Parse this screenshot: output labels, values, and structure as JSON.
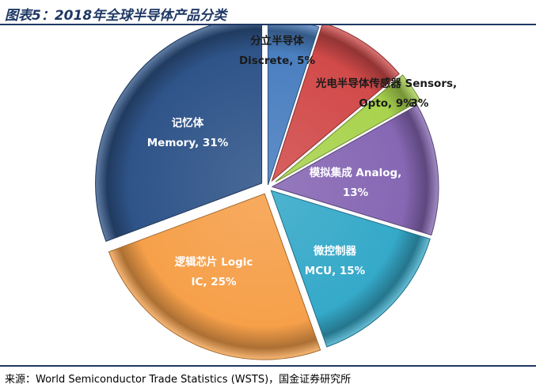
{
  "header": {
    "title": "图表5：2018年全球半导体产品分类"
  },
  "footer": {
    "source": "来源：World Semiconductor Trade Statistics (WSTS)，国金证券研究所"
  },
  "chart_data": {
    "type": "pie",
    "title": "图表5：2018年全球半导体产品分类",
    "slices": [
      {
        "label_cn": "分立半导体",
        "label_en": "Discrete",
        "value": 5,
        "pct": "5%",
        "color": "#4a7fc0",
        "label_color": "#1a1a1a"
      },
      {
        "label_cn": "光电半导体",
        "label_en": "Opto",
        "value": 9,
        "pct": "9%",
        "color": "#d24a4a",
        "label_color": "#1a1a1a"
      },
      {
        "label_cn": "传感器",
        "label_en": "Sensors",
        "value": 3,
        "pct": "3%",
        "color": "#a9d34e",
        "label_color": "#1a1a1a"
      },
      {
        "label_cn": "模拟集成",
        "label_en": "Analog",
        "value": 13,
        "pct": "13%",
        "color": "#8667b4",
        "label_color": "#ffffff"
      },
      {
        "label_cn": "微控制器",
        "label_en": "MCU",
        "value": 15,
        "pct": "15%",
        "color": "#35a9c9",
        "label_color": "#ffffff"
      },
      {
        "label_cn": "逻辑芯片",
        "label_en": "Logic IC",
        "value": 25,
        "pct": "25%",
        "color": "#f6a04a",
        "label_color": "#ffffff"
      },
      {
        "label_cn": "记忆体",
        "label_en": "Memory",
        "value": 31,
        "pct": "31%",
        "color": "#2f5489",
        "label_color": "#ffffff"
      }
    ],
    "labels": [
      {
        "lines": [
          "分立半导体",
          "Discrete, 5%"
        ]
      },
      {
        "lines": [
          "光电半导体传感器 Sensors,",
          "Opto, 9%"
        ]
      },
      {
        "lines": [
          "3%"
        ]
      },
      {
        "lines": [
          "模拟集成 Analog,",
          "13%"
        ]
      },
      {
        "lines": [
          "微控制器",
          "MCU, 15%"
        ]
      },
      {
        "lines": [
          "逻辑芯片 Logic",
          "IC, 25%"
        ]
      },
      {
        "lines": [
          "记忆体",
          "Memory, 31%"
        ]
      }
    ]
  }
}
